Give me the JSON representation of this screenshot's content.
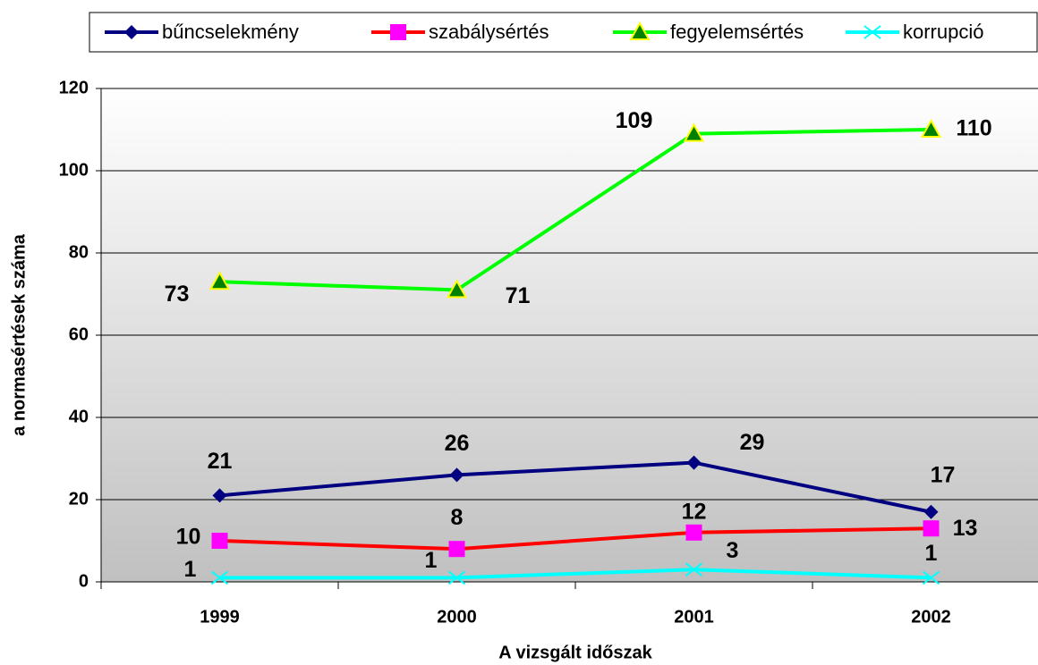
{
  "chart_data": {
    "type": "line",
    "categories": [
      "1999",
      "2000",
      "2001",
      "2002"
    ],
    "series": [
      {
        "name": "bűncselekmény",
        "color": "#000080",
        "marker": "diamond",
        "values": [
          21,
          26,
          29,
          17
        ]
      },
      {
        "name": "szabálysértés",
        "color": "#ff0000",
        "marker_color": "#ff00ff",
        "marker": "square",
        "values": [
          10,
          8,
          12,
          13
        ]
      },
      {
        "name": "fegyelemsértés",
        "color": "#00ff00",
        "marker_color": "#008000",
        "marker": "triangle",
        "values": [
          73,
          71,
          109,
          110
        ]
      },
      {
        "name": "korrupció",
        "color": "#00ffff",
        "marker": "x",
        "values": [
          1,
          1,
          3,
          1
        ]
      }
    ],
    "ylim": [
      0,
      120
    ],
    "yticks": [
      0,
      20,
      40,
      60,
      80,
      100,
      120
    ],
    "grid": true,
    "y_label": "a normasértések száma",
    "x_label": "A vizsgált időszak",
    "legend": "top"
  }
}
